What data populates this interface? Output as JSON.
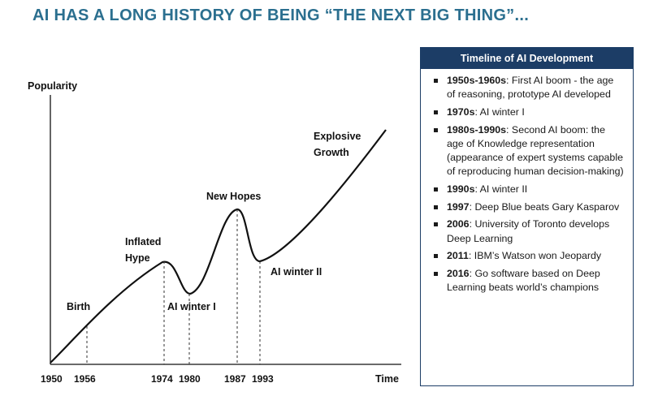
{
  "title": "AI HAS A LONG HISTORY OF BEING “THE NEXT BIG THING”...",
  "chart": {
    "ylabel": "Popularity",
    "xlabel": "Time",
    "ticks": [
      "1950",
      "1956",
      "1974",
      "1980",
      "1987",
      "1993"
    ],
    "phases": [
      {
        "label": [
          "Birth"
        ],
        "year": "1956"
      },
      {
        "label": [
          "Inflated",
          "Hype"
        ],
        "year": "1974"
      },
      {
        "label": [
          "AI winter I"
        ],
        "year": "1980"
      },
      {
        "label": [
          "New Hopes"
        ],
        "year": "1987"
      },
      {
        "label": [
          "AI winter II"
        ],
        "year": "1993"
      },
      {
        "label": [
          "Explosive",
          "Growth"
        ],
        "year": ""
      }
    ],
    "line_color": "#111111"
  },
  "timeline": {
    "header": "Timeline of AI Development",
    "items": [
      {
        "period": "1950s-1960s",
        "text": ": First AI boom - the age of reasoning, prototype AI developed"
      },
      {
        "period": "1970s",
        "text": ": AI winter I"
      },
      {
        "period": "1980s-1990s",
        "text": ": Second AI boom: the age of Knowledge representation (appearance of expert systems capable of reproducing human decision-making)"
      },
      {
        "period": "1990s",
        "text": ": AI winter II"
      },
      {
        "period": "1997",
        "text": ": Deep Blue beats Gary Kasparov"
      },
      {
        "period": "2006",
        "text": ": University of Toronto develops Deep Learning"
      },
      {
        "period": "2011",
        "text": ": IBM’s Watson won Jeopardy"
      },
      {
        "period": "2016",
        "text": ": Go software based on Deep Learning beats world’s champions"
      }
    ]
  },
  "colors": {
    "title": "#2b6f8f",
    "panel_header": "#1c3d66"
  }
}
